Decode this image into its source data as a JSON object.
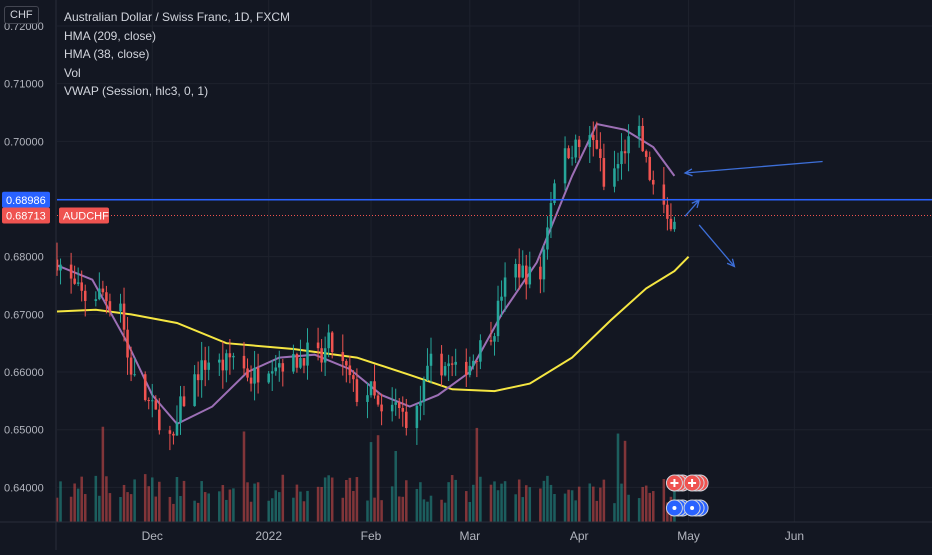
{
  "header": {
    "currency": "CHF",
    "title": "Australian Dollar / Swiss Franc, 1D, FXCM",
    "indicators": [
      "HMA (209, close)",
      "HMA (38, close)",
      "Vol",
      "VWAP (Session, hlc3, 0, 1)"
    ]
  },
  "markers": {
    "hline_value": "0.68986",
    "last_value": "0.68713",
    "last_symbol": "AUDCHF"
  },
  "colors": {
    "background": "#131722",
    "up": "#26a69a",
    "down": "#ef5350",
    "hma209": "#f5e642",
    "hma38": "#9c6fb5",
    "hline": "#2962ff",
    "drawing": "#3d6fd9",
    "grid": "#1e222d"
  },
  "chart_data": {
    "type": "candlestick",
    "title": "Australian Dollar / Swiss Franc, 1D, FXCM",
    "ylim": [
      0.634,
      0.7245
    ],
    "y_ticks": [
      "0.64000",
      "0.65000",
      "0.66000",
      "0.67000",
      "0.68000",
      "0.69000",
      "0.70000",
      "0.71000",
      "0.72000"
    ],
    "x_ticks": [
      {
        "label": "Dec",
        "date": "2021-12-01"
      },
      {
        "label": "2022",
        "date": "2022-01-03"
      },
      {
        "label": "Feb",
        "date": "2022-02-01"
      },
      {
        "label": "Mar",
        "date": "2022-03-01"
      },
      {
        "label": "Apr",
        "date": "2022-04-01"
      },
      {
        "label": "May",
        "date": "2022-05-02"
      },
      {
        "label": "Jun",
        "date": "2022-06-01"
      }
    ],
    "xlim": [
      "2021-11-04",
      "2022-07-10"
    ],
    "grid": true,
    "anchors": [
      [
        "2021-11-04",
        0.6795
      ],
      [
        "2021-11-09",
        0.6745
      ],
      [
        "2021-11-12",
        0.6728
      ],
      [
        "2021-11-17",
        0.6738
      ],
      [
        "2021-11-19",
        0.6718
      ],
      [
        "2021-11-22",
        0.6725
      ],
      [
        "2021-11-24",
        0.6625
      ],
      [
        "2021-11-26",
        0.6585
      ],
      [
        "2021-11-30",
        0.6545
      ],
      [
        "2021-12-02",
        0.6525
      ],
      [
        "2021-12-03",
        0.6518
      ],
      [
        "2021-12-07",
        0.6475
      ],
      [
        "2021-12-09",
        0.654
      ],
      [
        "2021-12-14",
        0.66
      ],
      [
        "2021-12-17",
        0.662
      ],
      [
        "2021-12-21",
        0.661
      ],
      [
        "2021-12-24",
        0.663
      ],
      [
        "2021-12-29",
        0.659
      ],
      [
        "2022-01-04",
        0.662
      ],
      [
        "2022-01-10",
        0.6615
      ],
      [
        "2022-01-14",
        0.6635
      ],
      [
        "2022-01-18",
        0.662
      ],
      [
        "2022-01-20",
        0.665
      ],
      [
        "2022-01-25",
        0.66
      ],
      [
        "2022-01-28",
        0.656
      ],
      [
        "2022-02-01",
        0.6568
      ],
      [
        "2022-02-04",
        0.652
      ],
      [
        "2022-02-08",
        0.654
      ],
      [
        "2022-02-11",
        0.652
      ],
      [
        "2022-02-14",
        0.653
      ],
      [
        "2022-02-18",
        0.6615
      ],
      [
        "2022-02-23",
        0.661
      ],
      [
        "2022-02-25",
        0.66
      ],
      [
        "2022-03-01",
        0.6615
      ],
      [
        "2022-03-04",
        0.6645
      ],
      [
        "2022-03-08",
        0.668
      ],
      [
        "2022-03-10",
        0.674
      ],
      [
        "2022-03-14",
        0.678
      ],
      [
        "2022-03-17",
        0.677
      ],
      [
        "2022-03-21",
        0.6765
      ],
      [
        "2022-03-23",
        0.686
      ],
      [
        "2022-03-25",
        0.694
      ],
      [
        "2022-03-29",
        0.6985
      ],
      [
        "2022-03-31",
        0.699
      ],
      [
        "2022-04-04",
        0.7
      ],
      [
        "2022-04-06",
        0.6995
      ],
      [
        "2022-04-08",
        0.692
      ],
      [
        "2022-04-12",
        0.696
      ],
      [
        "2022-04-14",
        0.699
      ],
      [
        "2022-04-18",
        0.701
      ],
      [
        "2022-04-20",
        0.696
      ],
      [
        "2022-04-22",
        0.692
      ],
      [
        "2022-04-26",
        0.686
      ],
      [
        "2022-04-28",
        0.6871
      ]
    ],
    "hma209": [
      [
        "2021-11-04",
        0.6705
      ],
      [
        "2021-11-15",
        0.6708
      ],
      [
        "2021-11-25",
        0.67
      ],
      [
        "2021-12-08",
        0.6685
      ],
      [
        "2021-12-22",
        0.665
      ],
      [
        "2022-01-10",
        0.664
      ],
      [
        "2022-01-28",
        0.6625
      ],
      [
        "2022-02-12",
        0.6595
      ],
      [
        "2022-02-24",
        0.657
      ],
      [
        "2022-03-08",
        0.6567
      ],
      [
        "2022-03-18",
        0.658
      ],
      [
        "2022-03-30",
        0.6625
      ],
      [
        "2022-04-10",
        0.669
      ],
      [
        "2022-04-20",
        0.6745
      ],
      [
        "2022-04-28",
        0.6775
      ],
      [
        "2022-05-02",
        0.68
      ]
    ],
    "hma38": [
      [
        "2021-11-04",
        0.6785
      ],
      [
        "2021-11-14",
        0.676
      ],
      [
        "2021-11-24",
        0.665
      ],
      [
        "2021-12-01",
        0.656
      ],
      [
        "2021-12-08",
        0.651
      ],
      [
        "2021-12-18",
        0.654
      ],
      [
        "2021-12-28",
        0.66
      ],
      [
        "2022-01-06",
        0.6625
      ],
      [
        "2022-01-16",
        0.663
      ],
      [
        "2022-01-26",
        0.6605
      ],
      [
        "2022-02-04",
        0.656
      ],
      [
        "2022-02-12",
        0.654
      ],
      [
        "2022-02-20",
        0.656
      ],
      [
        "2022-03-01",
        0.66
      ],
      [
        "2022-03-10",
        0.67
      ],
      [
        "2022-03-20",
        0.679
      ],
      [
        "2022-03-30",
        0.694
      ],
      [
        "2022-04-06",
        0.703
      ],
      [
        "2022-04-14",
        0.702
      ],
      [
        "2022-04-22",
        0.699
      ],
      [
        "2022-04-28",
        0.694
      ]
    ],
    "hline": 0.68986,
    "last_price": 0.68713,
    "drawing_points": {
      "arrow_a": [
        [
          "2022-06-09",
          0.6965
        ],
        [
          "2022-05-01",
          0.6945
        ]
      ],
      "arrow_b": [
        [
          "2022-05-01",
          0.687
        ],
        [
          "2022-05-05",
          0.6898
        ]
      ],
      "arrow_c": [
        [
          "2022-05-05",
          0.6855
        ],
        [
          "2022-05-15",
          0.6783
        ]
      ]
    }
  }
}
